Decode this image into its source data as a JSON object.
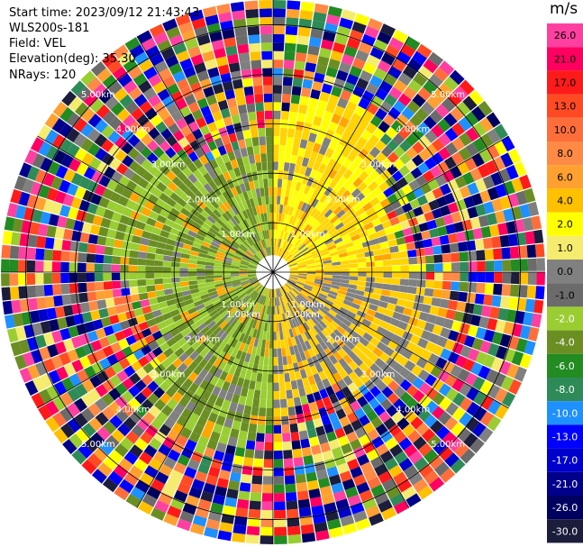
{
  "info": {
    "start_time": "Start time: 2023/09/12 21:43:43",
    "instrument": "WLS200s-181",
    "field": "Field: VEL",
    "elevation": "Elevation(deg): 35.30",
    "nrays": "NRays: 120"
  },
  "chart_data": {
    "type": "ppi-polar",
    "field": "VEL",
    "units": "m/s",
    "nrays": 120,
    "max_range_km": 5.5,
    "range_ring_labels": [
      "1.00km",
      "2.00km",
      "3.00km",
      "4.00km",
      "5.00km"
    ],
    "range_rings_km": [
      1,
      2,
      3,
      4,
      5
    ],
    "spoke_angles_deg": [
      0,
      30,
      60,
      90,
      120,
      150,
      180,
      210,
      240,
      270,
      300,
      330
    ],
    "colorbar": {
      "ticks": [
        "26.0",
        "21.0",
        "17.0",
        "13.0",
        "10.0",
        "8.0",
        "6.0",
        "4.0",
        "2.0",
        "1.0",
        "0.0",
        "-1.0",
        "-2.0",
        "-4.0",
        "-6.0",
        "-8.0",
        "-10.0",
        "-13.0",
        "-17.0",
        "-21.0",
        "-26.0",
        "-30.0"
      ],
      "colors": [
        "#ff40a0",
        "#ff0060",
        "#ff1a1a",
        "#ff4a24",
        "#ff6e3a",
        "#ff8a45",
        "#ffa030",
        "#ffc000",
        "#ffff00",
        "#f5eb6e",
        "#808080",
        "#6b6b6b",
        "#9acd32",
        "#6b8e23",
        "#228b22",
        "#2e8b57",
        "#1e90ff",
        "#0000ff",
        "#0000cd",
        "#00008b",
        "#000060",
        "#1c1c3c"
      ]
    },
    "sectors": [
      {
        "label": "north-east",
        "from_deg": 0,
        "to_deg": 90,
        "dominant": "2.0 to 6.0",
        "color_range": [
          "#ffd400",
          "#ffff00"
        ]
      },
      {
        "label": "south-east",
        "from_deg": 90,
        "to_deg": 180,
        "dominant": "0.0 to 4.0",
        "color_range": [
          "#808080",
          "#ffd000"
        ]
      },
      {
        "label": "south-west",
        "from_deg": 180,
        "to_deg": 270,
        "dominant": "-4.0 to -1.0",
        "color_range": [
          "#9acd32",
          "#6b8e23"
        ]
      },
      {
        "label": "north-west",
        "from_deg": 270,
        "to_deg": 360,
        "dominant": "-4.0 to -1.0",
        "color_range": [
          "#6b8e23",
          "#9acd32"
        ]
      }
    ]
  }
}
